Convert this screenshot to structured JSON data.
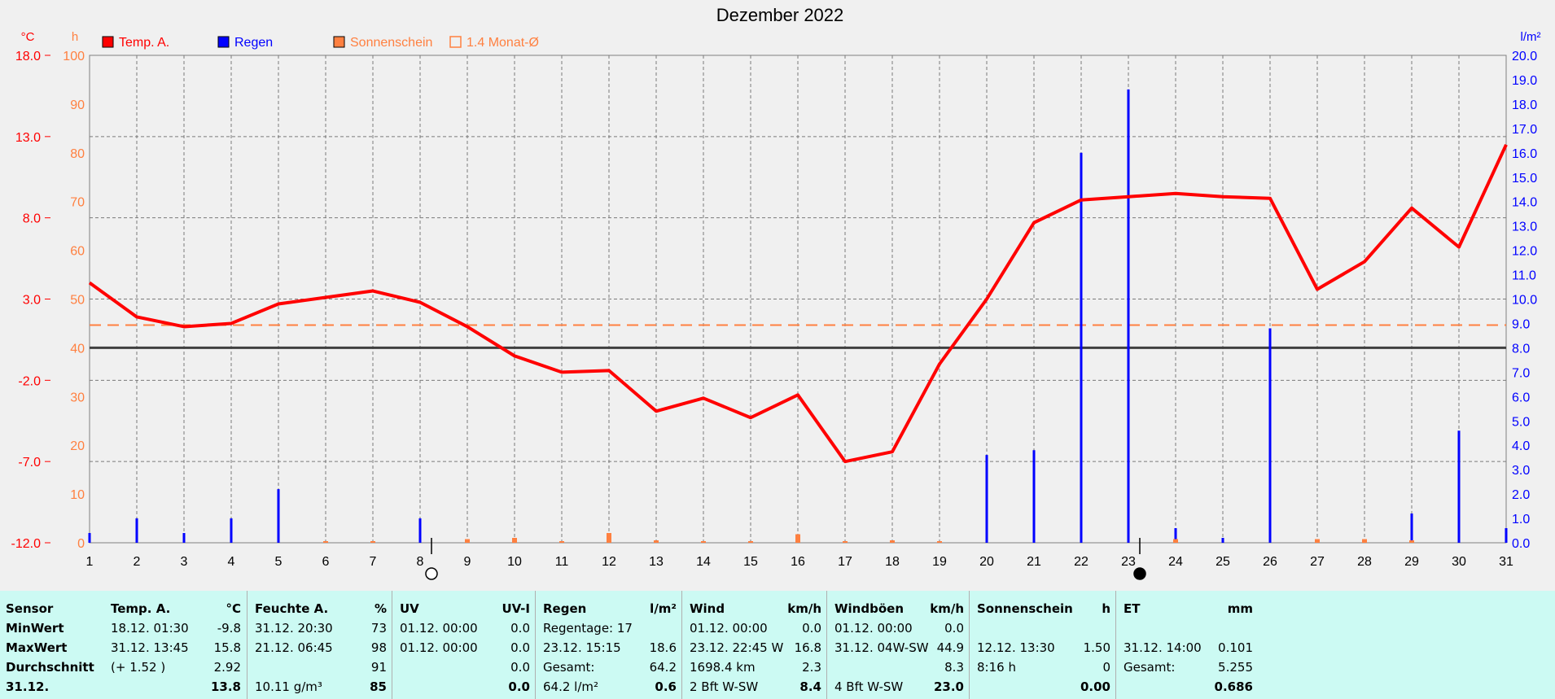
{
  "chart_data": {
    "type": "line",
    "title": "Dezember 2022",
    "legend": [
      {
        "label": "Temp. A.",
        "color": "#ff0000",
        "kind": "filled"
      },
      {
        "label": "Regen",
        "color": "#0000ff",
        "kind": "filled"
      },
      {
        "label": "Sonnenschein",
        "color": "#ff8040",
        "kind": "filled"
      },
      {
        "label": "1.4 Monat-Ø",
        "color": "#ff8040",
        "kind": "outline"
      }
    ],
    "x": [
      1,
      2,
      3,
      4,
      5,
      6,
      7,
      8,
      9,
      10,
      11,
      12,
      13,
      14,
      15,
      16,
      17,
      18,
      19,
      20,
      21,
      22,
      23,
      24,
      25,
      26,
      27,
      28,
      29,
      30,
      31
    ],
    "x_ticks": [
      "1",
      "2",
      "3",
      "4",
      "5",
      "6",
      "7",
      "8",
      "9",
      "10",
      "11",
      "12",
      "13",
      "14",
      "15",
      "16",
      "17",
      "18",
      "19",
      "20",
      "21",
      "22",
      "23",
      "24",
      "25",
      "26",
      "27",
      "28",
      "29",
      "30",
      "31"
    ],
    "axes": {
      "temp": {
        "unit": "°C",
        "min": -12,
        "max": 18,
        "ticks": [
          "18.0",
          "13.0",
          "8.0",
          "3.0",
          "-2.0",
          "-7.0",
          "-12.0"
        ],
        "color": "#ff0000"
      },
      "sun": {
        "unit": "h",
        "min": 0,
        "max": 100,
        "ticks": [
          "100",
          "90",
          "80",
          "70",
          "60",
          "50",
          "40",
          "30",
          "20",
          "10",
          "0"
        ],
        "color": "#ff8040"
      },
      "rain": {
        "unit": "l/m²",
        "min": 0,
        "max": 20,
        "ticks": [
          "20.0",
          "19.0",
          "18.0",
          "17.0",
          "16.0",
          "15.0",
          "14.0",
          "13.0",
          "12.0",
          "11.0",
          "10.0",
          "9.0",
          "8.0",
          "7.0",
          "6.0",
          "5.0",
          "4.0",
          "3.0",
          "2.0",
          "1.0",
          "0.0"
        ],
        "color": "#0000ff"
      }
    },
    "series": [
      {
        "name": "Temp. A.",
        "axis": "temp",
        "color": "#ff0000",
        "values": [
          4.0,
          1.9,
          1.3,
          1.5,
          2.7,
          3.1,
          3.5,
          2.8,
          1.3,
          -0.5,
          -1.5,
          -1.4,
          -3.9,
          -3.1,
          -4.3,
          -2.9,
          -7.0,
          -6.4,
          -1.0,
          3.0,
          7.7,
          9.1,
          9.3,
          9.5,
          9.3,
          9.2,
          3.6,
          5.3,
          8.6,
          6.2,
          12.5
        ]
      },
      {
        "name": "Regen",
        "axis": "rain",
        "color": "#0000ff",
        "kind": "bar",
        "values": [
          0.4,
          1.0,
          0.4,
          1.0,
          2.2,
          0,
          0,
          1.0,
          0,
          0,
          0,
          0.2,
          0,
          0,
          0,
          0,
          0,
          0,
          0,
          3.6,
          3.8,
          16.0,
          18.6,
          0.6,
          0.2,
          8.8,
          0,
          0,
          1.2,
          4.6,
          0.6
        ]
      },
      {
        "name": "Sonnenschein",
        "axis": "rain",
        "color": "#ff8040",
        "kind": "bar",
        "values": [
          0,
          0,
          0,
          0,
          0,
          0,
          0,
          0,
          0.15,
          0.2,
          0,
          0.4,
          0.1,
          0,
          0,
          0.35,
          0,
          0.1,
          0,
          0,
          0,
          0,
          0,
          0.15,
          0,
          0,
          0.15,
          0.15,
          0.1,
          0,
          0
        ]
      }
    ],
    "reference_lines": [
      {
        "name": "1.4 Monat-Ø",
        "axis": "temp",
        "value": 1.4,
        "style": "dashed",
        "color": "#ff8040"
      },
      {
        "name": "zero",
        "axis": "temp",
        "value": 0,
        "style": "solid",
        "color": "#404040"
      }
    ],
    "moon_phases": [
      {
        "day": 8,
        "phase": "full"
      },
      {
        "day": 23,
        "phase": "new"
      }
    ],
    "grid": true
  },
  "stats": {
    "row_labels": [
      "Sensor",
      "MinWert",
      "MaxWert",
      "Durchschnitt",
      "31.12."
    ],
    "columns": [
      {
        "title": "Temp. A.",
        "unit": "°C",
        "rows": [
          [
            "18.12.  01:30",
            "-9.8"
          ],
          [
            "31.12.  13:45",
            "15.8"
          ],
          [
            "(+ 1.52 )",
            "2.92"
          ],
          [
            "",
            "13.8"
          ]
        ]
      },
      {
        "title": "Feuchte A.",
        "unit": "%",
        "rows": [
          [
            "31.12.  20:30",
            "73"
          ],
          [
            "21.12.  06:45",
            "98"
          ],
          [
            "",
            "91"
          ],
          [
            "10.11 g/m³",
            "85"
          ]
        ]
      },
      {
        "title": "UV",
        "unit": "UV-I",
        "rows": [
          [
            "01.12.  00:00",
            "0.0"
          ],
          [
            "01.12.  00:00",
            "0.0"
          ],
          [
            "",
            "0.0"
          ],
          [
            "",
            "0.0"
          ]
        ]
      },
      {
        "title": "Regen",
        "unit": "l/m²",
        "rows": [
          [
            "Regentage: 17",
            ""
          ],
          [
            "23.12.  15:15",
            "18.6"
          ],
          [
            "Gesamt:",
            "64.2"
          ],
          [
            "64.2 l/m²",
            "0.6"
          ]
        ]
      },
      {
        "title": "Wind",
        "unit": "km/h",
        "rows": [
          [
            "01.12.  00:00",
            "0.0"
          ],
          [
            "23.12.  22:45  W",
            "16.8"
          ],
          [
            "1698.4 km",
            "2.3"
          ],
          [
            "2 Bft W-SW",
            "8.4"
          ]
        ]
      },
      {
        "title": "Windböen",
        "unit": "km/h",
        "rows": [
          [
            "01.12.  00:00",
            "0.0"
          ],
          [
            "31.12.  04W-SW",
            "44.9"
          ],
          [
            "",
            "8.3"
          ],
          [
            "4 Bft W-SW",
            "23.0"
          ]
        ]
      },
      {
        "title": "Sonnenschein",
        "unit": "h",
        "rows": [
          [
            "",
            ""
          ],
          [
            "12.12.  13:30",
            "1.50"
          ],
          [
            "8:16 h",
            "0"
          ],
          [
            "",
            "0.00"
          ]
        ]
      },
      {
        "title": "ET",
        "unit": "mm",
        "rows": [
          [
            "",
            ""
          ],
          [
            "31.12.  14:00",
            "0.101"
          ],
          [
            "Gesamt:",
            "5.255"
          ],
          [
            "",
            "0.686"
          ]
        ]
      }
    ]
  }
}
